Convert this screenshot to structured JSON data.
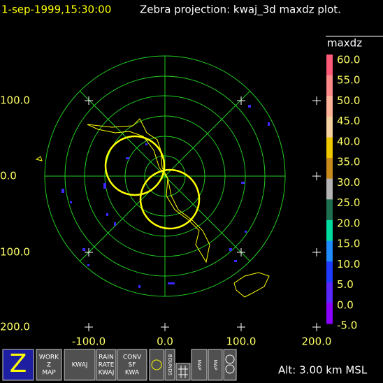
{
  "header": {
    "time": "1-sep-1999,15:30:00",
    "title": "Zebra projection: kwaj_3d maxdz plot."
  },
  "plot": {
    "x_labels": [
      "-100.0",
      "0.0",
      "100.0",
      "200.0"
    ],
    "y_labels": [
      "100.0",
      "0.0",
      "100.0",
      "200.0"
    ]
  },
  "colorbar": {
    "title": "maxdz",
    "labels": [
      "60.0",
      "55.0",
      "50.0",
      "45.0",
      "40.0",
      "35.0",
      "30.0",
      "25.0",
      "20.0",
      "15.0",
      "10.0",
      "5.0",
      "0.0",
      "-5.0"
    ],
    "colors": [
      "#ff5a78",
      "#ff8a8a",
      "#ffb49a",
      "#f5d2a0",
      "#f0c800",
      "#c88c1e",
      "#b4b4b4",
      "#1e6e50",
      "#00dca0",
      "#1e8cff",
      "#1e3cff",
      "#5a28ff",
      "#8c00ff"
    ]
  },
  "toolbar": {
    "icons": [
      {
        "lines": [
          "Z"
        ]
      },
      {
        "lines": [
          "WORK",
          "Z",
          "MAP"
        ]
      },
      {
        "lines": [
          "KWAJ"
        ]
      },
      {
        "lines": [
          "RAIN",
          "RATE",
          "KWAJ"
        ]
      },
      {
        "lines": [
          "CONV",
          "SF",
          "KWA"
        ]
      },
      {
        "lines": [
          "BOUNDS"
        ]
      },
      {
        "lines": [
          "MAP"
        ]
      },
      {
        "lines": [
          "MAP"
        ]
      }
    ]
  },
  "status": "Alt: 3.00 km MSL"
}
